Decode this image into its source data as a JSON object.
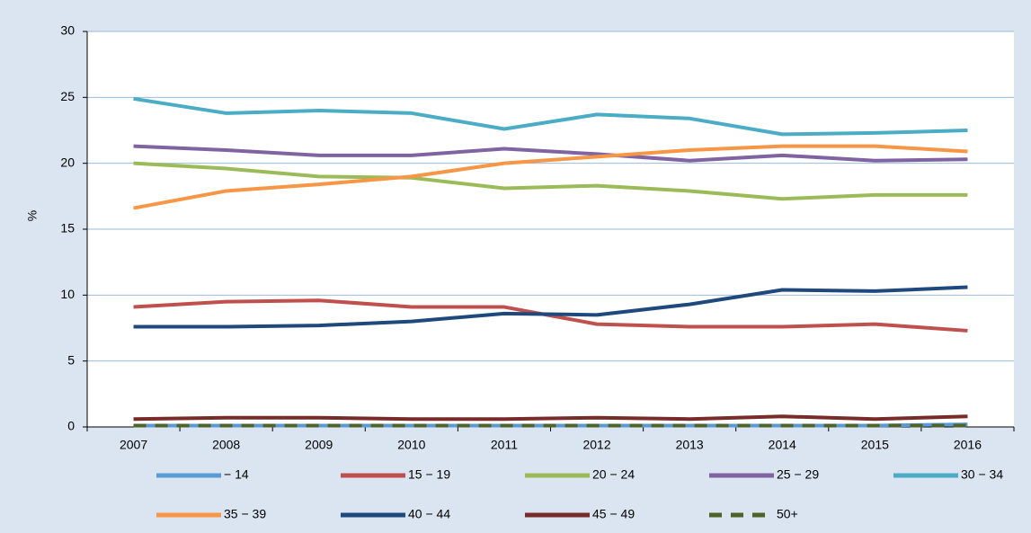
{
  "chart_data": {
    "type": "line",
    "y_label": "%",
    "categories": [
      "2007",
      "2008",
      "2009",
      "2010",
      "2011",
      "2012",
      "2013",
      "2014",
      "2015",
      "2016"
    ],
    "ylim": [
      0,
      30
    ],
    "yticks": [
      0,
      5,
      10,
      15,
      20,
      25,
      30
    ],
    "grid": true,
    "series": [
      {
        "name": "− 14",
        "color": "#5b9bd5",
        "values": [
          0.1,
          0.1,
          0.1,
          0.1,
          0.1,
          0.1,
          0.1,
          0.1,
          0.1,
          0.2
        ]
      },
      {
        "name": "15 − 19",
        "color": "#c0504d",
        "values": [
          9.1,
          9.5,
          9.6,
          9.1,
          9.1,
          7.8,
          7.6,
          7.6,
          7.8,
          7.3
        ]
      },
      {
        "name": "20 − 24",
        "color": "#9bbb59",
        "values": [
          20.0,
          19.6,
          19.0,
          18.9,
          18.1,
          18.3,
          17.9,
          17.3,
          17.6,
          17.6
        ]
      },
      {
        "name": "25 − 29",
        "color": "#8064a2",
        "values": [
          21.3,
          21.0,
          20.6,
          20.6,
          21.1,
          20.7,
          20.2,
          20.6,
          20.2,
          20.3
        ]
      },
      {
        "name": "30 − 34",
        "color": "#4bacc6",
        "values": [
          24.9,
          23.8,
          24.0,
          23.8,
          22.6,
          23.7,
          23.4,
          22.2,
          22.3,
          22.5
        ]
      },
      {
        "name": "35 − 39",
        "color": "#f79646",
        "values": [
          16.6,
          17.9,
          18.4,
          19.0,
          20.0,
          20.5,
          21.0,
          21.3,
          21.3,
          20.9
        ]
      },
      {
        "name": "40 − 44",
        "color": "#1f497d",
        "values": [
          7.6,
          7.6,
          7.7,
          8.0,
          8.6,
          8.5,
          9.3,
          10.4,
          10.3,
          10.6
        ]
      },
      {
        "name": "45 − 49",
        "color": "#772c2a",
        "values": [
          0.6,
          0.7,
          0.7,
          0.6,
          0.6,
          0.7,
          0.6,
          0.8,
          0.6,
          0.8
        ]
      },
      {
        "name": "50+",
        "color": "#4f6228",
        "dashed": true,
        "values": [
          0.1,
          0.1,
          0.1,
          0.1,
          0.1,
          0.1,
          0.1,
          0.1,
          0.1,
          0.1
        ]
      }
    ]
  }
}
